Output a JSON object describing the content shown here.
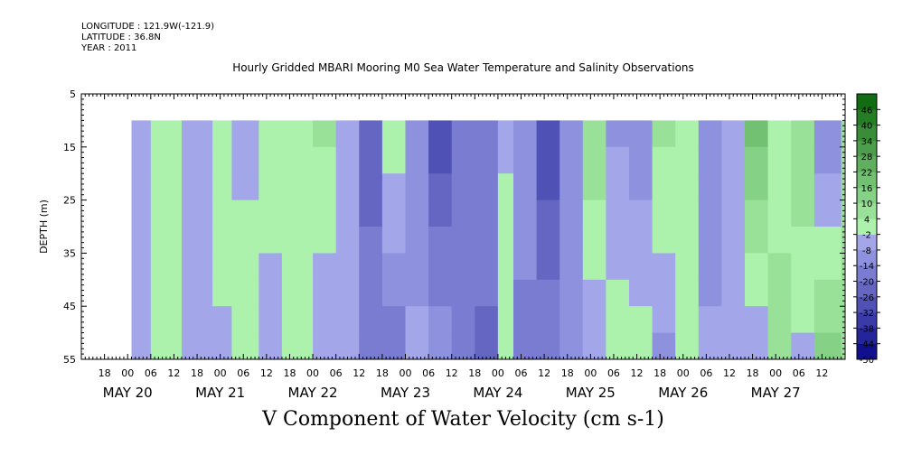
{
  "header": {
    "longitude": "LONGITUDE : 121.9W(-121.9)",
    "latitude": "LATITUDE : 36.8N",
    "year": "YEAR : 2011"
  },
  "chart_data": {
    "type": "heatmap",
    "title": "Hourly Gridded MBARI Mooring M0 Sea Water Temperature and Salinity Observations",
    "xlabel": "V Component of Water Velocity (cm s-1)",
    "ylabel": "DEPTH (m)",
    "ylim": [
      55,
      5
    ],
    "y_ticks": [
      5,
      15,
      25,
      35,
      45,
      55
    ],
    "x_start": "2011-05-19 12:00",
    "x_end": "2011-05-27 18:00",
    "data_start": "2011-05-20 01:00",
    "data_end": "2011-05-27 17:00",
    "depth_range": [
      10,
      55
    ],
    "hour_tick_labels": [
      "18",
      "00",
      "06",
      "12",
      "18",
      "00",
      "06",
      "12",
      "18",
      "00",
      "06",
      "12",
      "18",
      "00",
      "06",
      "12",
      "18",
      "00",
      "06",
      "12",
      "18",
      "00",
      "06",
      "12",
      "18",
      "00",
      "06",
      "12",
      "18",
      "00",
      "06",
      "12"
    ],
    "day_labels": [
      {
        "label": "MAY 20",
        "date": "2011-05-20"
      },
      {
        "label": "MAY 21",
        "date": "2011-05-21"
      },
      {
        "label": "MAY 22",
        "date": "2011-05-22"
      },
      {
        "label": "MAY 23",
        "date": "2011-05-23"
      },
      {
        "label": "MAY 24",
        "date": "2011-05-24"
      },
      {
        "label": "MAY 25",
        "date": "2011-05-25"
      },
      {
        "label": "MAY 26",
        "date": "2011-05-26"
      },
      {
        "label": "MAY 27",
        "date": "2011-05-27"
      }
    ],
    "colorbar": {
      "min": -50,
      "max": 52,
      "step": 6,
      "tick_labels": [
        "46",
        "40",
        "34",
        "28",
        "22",
        "16",
        "10",
        "4",
        "-2",
        "-8",
        "-14",
        "-20",
        "-26",
        "-32",
        "-38",
        "-44",
        "-50"
      ]
    },
    "columns": [
      {
        "date": "2011-05-20 01:00",
        "top": -2,
        "bottom": -5
      },
      {
        "date": "2011-05-20 06:00",
        "top": 2,
        "bottom": 1
      },
      {
        "date": "2011-05-20 14:00",
        "top": -8,
        "bottom": -6
      },
      {
        "date": "2011-05-20 22:00",
        "top": 4,
        "bottom": -4
      },
      {
        "date": "2011-05-21 03:00",
        "top": -4,
        "bottom": 2
      },
      {
        "date": "2011-05-21 10:00",
        "top": 4,
        "bottom": -6
      },
      {
        "date": "2011-05-21 16:00",
        "top": 3,
        "bottom": 0
      },
      {
        "date": "2011-05-22 00:00",
        "top": 6,
        "bottom": -8
      },
      {
        "date": "2011-05-22 06:00",
        "top": -6,
        "bottom": -4
      },
      {
        "date": "2011-05-22 12:00",
        "top": -24,
        "bottom": -14
      },
      {
        "date": "2011-05-22 18:00",
        "top": 2,
        "bottom": -18
      },
      {
        "date": "2011-05-23 00:00",
        "top": -14,
        "bottom": -6
      },
      {
        "date": "2011-05-23 06:00",
        "top": -30,
        "bottom": -10
      },
      {
        "date": "2011-05-23 12:00",
        "top": -20,
        "bottom": -16
      },
      {
        "date": "2011-05-23 18:00",
        "top": -14,
        "bottom": -22
      },
      {
        "date": "2011-05-24 00:00",
        "top": -4,
        "bottom": 4
      },
      {
        "date": "2011-05-24 04:00",
        "top": -10,
        "bottom": -16
      },
      {
        "date": "2011-05-24 10:00",
        "top": -32,
        "bottom": -14
      },
      {
        "date": "2011-05-24 16:00",
        "top": -8,
        "bottom": -10
      },
      {
        "date": "2011-05-24 22:00",
        "top": 10,
        "bottom": -8
      },
      {
        "date": "2011-05-25 04:00",
        "top": -10,
        "bottom": 2
      },
      {
        "date": "2011-05-25 10:00",
        "top": -14,
        "bottom": 2
      },
      {
        "date": "2011-05-25 16:00",
        "top": 6,
        "bottom": -10
      },
      {
        "date": "2011-05-25 22:00",
        "top": 2,
        "bottom": -2
      },
      {
        "date": "2011-05-26 04:00",
        "top": -14,
        "bottom": -6
      },
      {
        "date": "2011-05-26 10:00",
        "top": -4,
        "bottom": -2
      },
      {
        "date": "2011-05-26 16:00",
        "top": 18,
        "bottom": -8
      },
      {
        "date": "2011-05-26 22:00",
        "top": -2,
        "bottom": 8
      },
      {
        "date": "2011-05-27 04:00",
        "top": 10,
        "bottom": -4
      },
      {
        "date": "2011-05-27 10:00",
        "top": -14,
        "bottom": 14
      },
      {
        "date": "2011-05-27 17:00",
        "top": 6,
        "bottom": 6
      }
    ]
  }
}
